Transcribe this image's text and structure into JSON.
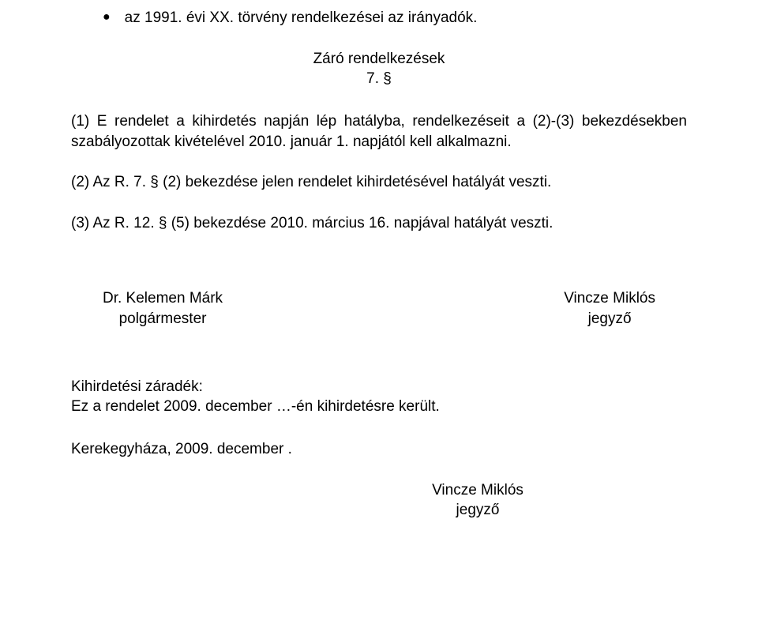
{
  "bullet": {
    "marker": "●",
    "text": "az 1991. évi XX. törvény rendelkezései az irányadók."
  },
  "heading": {
    "line1": "Záró rendelkezések",
    "line2": "7. §"
  },
  "para1": "(1) E rendelet a kihirdetés napján lép hatályba, rendelkezéseit a (2)-(3) bekezdésekben szabályozottak kivételével 2010. január 1. napjától kell alkalmazni.",
  "para2": "(2) Az R. 7. § (2) bekezdése jelen rendelet kihirdetésével hatályát veszti.",
  "para3": "(3) Az R. 12. § (5) bekezdése 2010. március 16. napjával hatályát veszti.",
  "signatures": {
    "left": {
      "name": "Dr. Kelemen Márk",
      "title": "polgármester"
    },
    "right": {
      "name": "Vincze Miklós",
      "title": "jegyző"
    }
  },
  "closing": {
    "line1": "Kihirdetési záradék:",
    "line2": "Ez a rendelet 2009. december …-én kihirdetésre került."
  },
  "place_date": "Kerekegyháza, 2009. december .",
  "final_sig": {
    "name": "Vincze Miklós",
    "title": "jegyző"
  }
}
